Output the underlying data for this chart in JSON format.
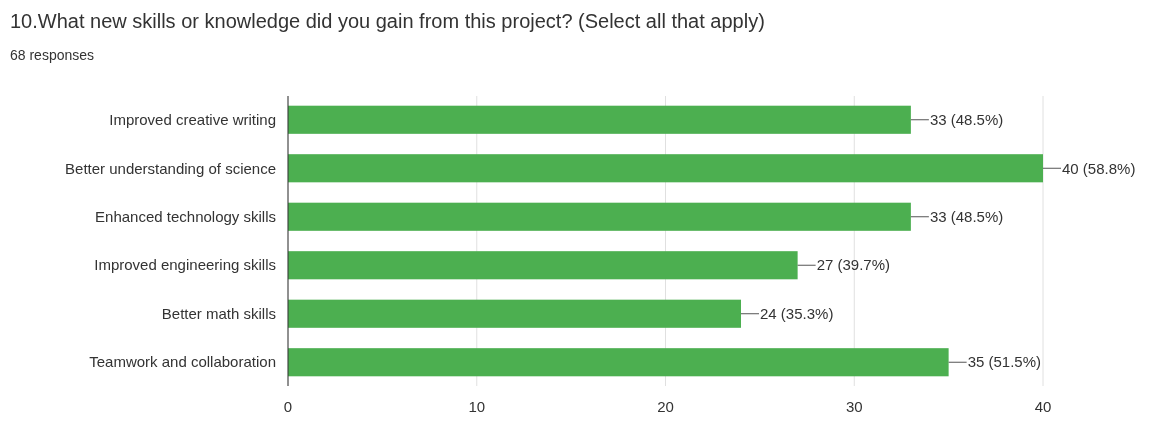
{
  "chart_data": {
    "type": "bar",
    "orientation": "horizontal",
    "title": "10.What new skills or knowledge did you gain from this project? (Select all that apply)",
    "subtitle": "68 responses",
    "categories": [
      "Improved creative writing",
      "Better understanding of science",
      "Enhanced technology skills",
      "Improved engineering skills",
      "Better math skills",
      "Teamwork and collaboration"
    ],
    "values": [
      33,
      40,
      33,
      27,
      24,
      35
    ],
    "value_labels": [
      "33 (48.5%)",
      "40 (58.8%)",
      "33 (48.5%)",
      "27 (39.7%)",
      "24 (35.3%)",
      "35 (51.5%)"
    ],
    "color": "#4caf50",
    "xlim": [
      0,
      40
    ],
    "xticks": [
      0,
      10,
      20,
      30,
      40
    ],
    "grid": "x"
  }
}
